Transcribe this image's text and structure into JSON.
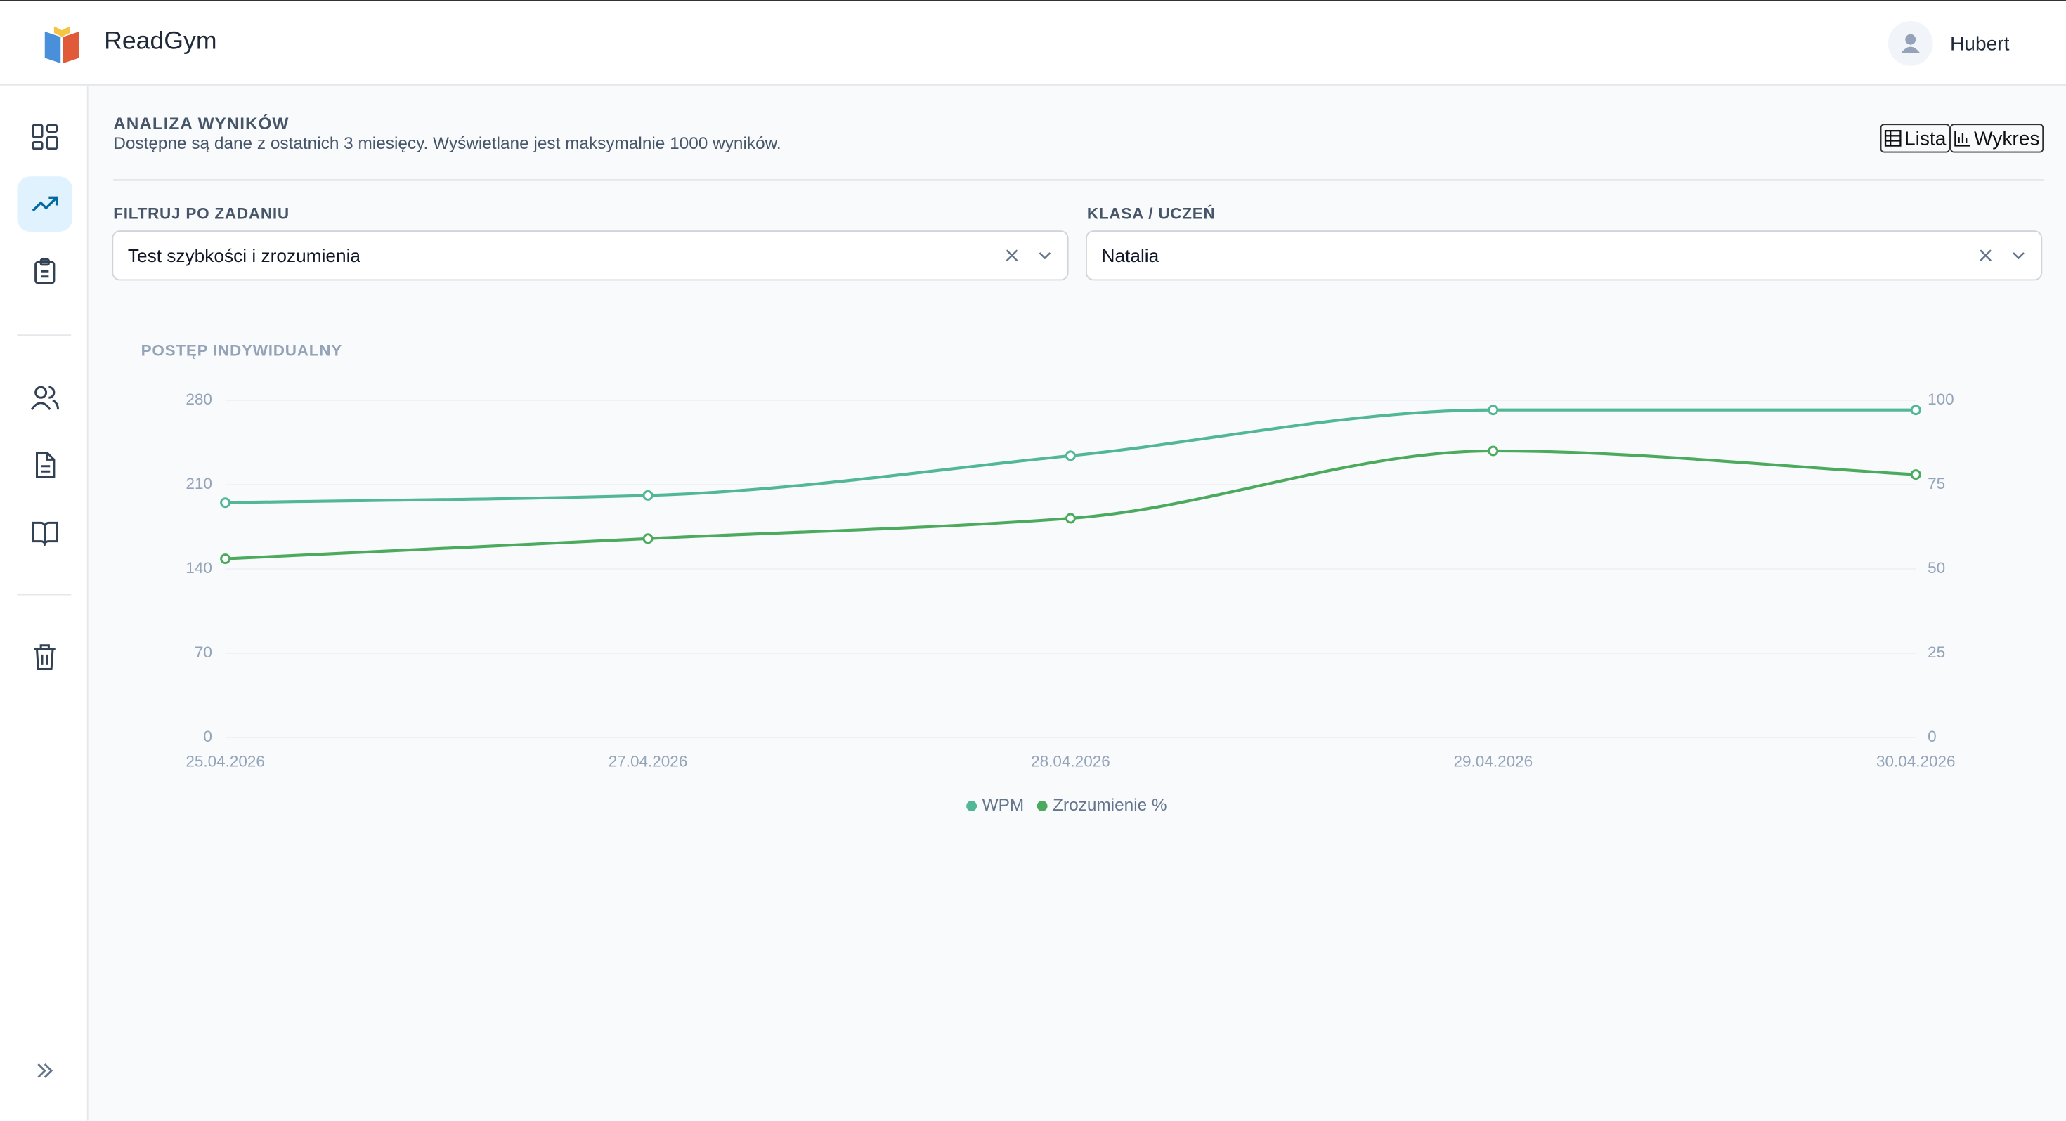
{
  "header": {
    "app_name": "ReadGym",
    "user": "Hubert"
  },
  "page": {
    "title": "ANALIZA WYNIKÓW",
    "subtitle": "Dostępne są dane z ostatnich 3 miesięcy. Wyświetlane jest maksymalnie 1000 wyników.",
    "view_buttons": [
      "Lista",
      "Wykres"
    ]
  },
  "filters": [
    {
      "label": "FILTRUJ PO ZADANIU",
      "value": "Test szybkości i zrozumienia"
    },
    {
      "label": "KLASA / UCZEŃ",
      "value": "Natalia"
    }
  ],
  "chart_data": {
    "type": "line",
    "title": "POSTĘP INDYWIDUALNY",
    "categories": [
      "25.04.2026",
      "27.04.2026",
      "28.04.2026",
      "29.04.2026",
      "30.04.2026"
    ],
    "series": [
      {
        "name": "WPM",
        "color": "#52b795",
        "values": [
          195,
          201,
          234,
          272,
          272
        ]
      },
      {
        "name": "Zrozumienie %",
        "color": "#4caa5e",
        "axis": "y2",
        "values": [
          53,
          59,
          65,
          85,
          78
        ]
      }
    ],
    "ylim": [
      0,
      280
    ],
    "yticks": [
      0,
      70,
      140,
      210,
      280
    ],
    "y2lim": [
      0,
      100
    ],
    "y2ticks": [
      0,
      25,
      50,
      75,
      100
    ],
    "grid": true,
    "legend": "bottom"
  }
}
